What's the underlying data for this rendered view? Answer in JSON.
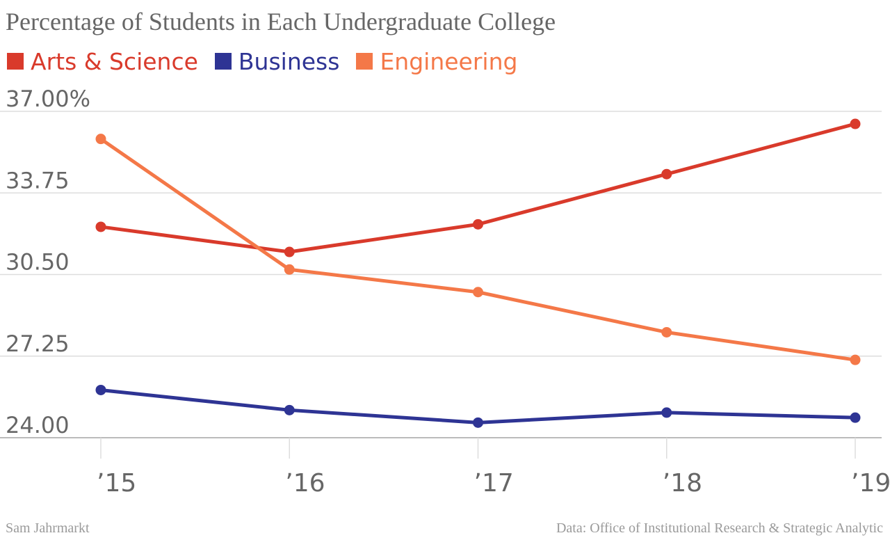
{
  "title": "Percentage of Students in Each Undergraduate College",
  "footer": {
    "credit": "Sam Jahrmarkt",
    "source": "Data: Office of Institutional Research & Strategic Analytic"
  },
  "chart_data": {
    "type": "line",
    "title": "Percentage of Students in Each Undergraduate College",
    "x": [
      "’15",
      "’16",
      "’17",
      "’18",
      "’19"
    ],
    "yticks": [
      "24.00",
      "27.25",
      "30.50",
      "33.75",
      "37.00%"
    ],
    "ylim": [
      24.0,
      37.0
    ],
    "grid": true,
    "legend_position": "top-left",
    "series": [
      {
        "name": "Arts & Science",
        "color": "#d93a2b",
        "values": [
          32.4,
          31.4,
          32.5,
          34.5,
          36.5
        ]
      },
      {
        "name": "Business",
        "color": "#2e3494",
        "values": [
          25.9,
          25.1,
          24.6,
          25.0,
          24.8
        ]
      },
      {
        "name": "Engineering",
        "color": "#f47848",
        "values": [
          35.9,
          30.7,
          29.8,
          28.2,
          27.1
        ]
      }
    ]
  }
}
